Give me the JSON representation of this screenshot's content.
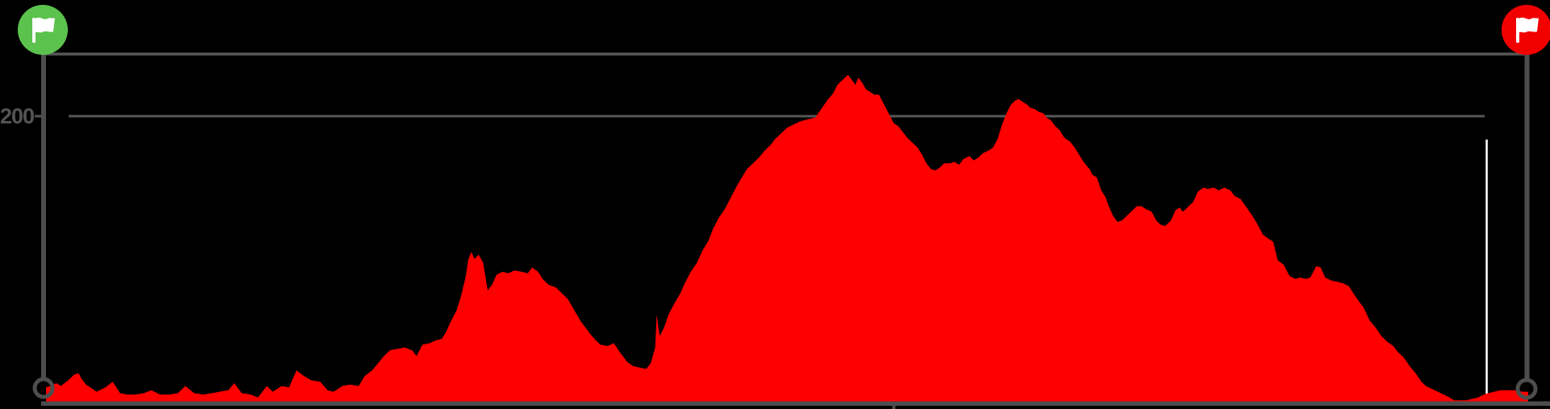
{
  "colors": {
    "background": "#000000",
    "area_fill": "#ff0000",
    "axis": "#4d4d4d",
    "gridline": "#565656",
    "tick_label_color": "#545454",
    "cursor_line": "#ffffff",
    "start_marker": "#5cc24e",
    "end_marker": "#f20000",
    "flag_glyph": "#ffffff"
  },
  "y_axis": {
    "tick_label": "200"
  },
  "markers": {
    "start": {
      "icon": "flag-icon",
      "shape": "circle",
      "color": "#5cc24e"
    },
    "end": {
      "icon": "flag-icon",
      "shape": "circle",
      "color": "#f20000"
    },
    "start_base_ring": {
      "shape": "ring",
      "color": "#4d4d4d"
    },
    "end_base_ring": {
      "shape": "ring",
      "color": "#4d4d4d"
    }
  },
  "chart_data": {
    "type": "area",
    "x_unit": "percent_of_route",
    "y_unit": "meters",
    "ylim": [
      0,
      244
    ],
    "grid": "single horizontal gridline at y=200",
    "legend": "none",
    "y_ticks": [
      {
        "value": 200,
        "label": "200"
      }
    ],
    "x_ticks": [
      {
        "position_pct": 57.2,
        "label": ""
      }
    ],
    "frame_top_elevation_m": 244,
    "cursor": {
      "position_pct": 97.2,
      "top_elevation_m": 183,
      "color": "#ffffff"
    },
    "max_elevation_m": 229,
    "series": [
      {
        "name": "elevation",
        "color": "#ff0000",
        "points_pct_m": [
          [
            0,
            10
          ],
          [
            0.3,
            11
          ],
          [
            0.7,
            13
          ],
          [
            1.0,
            11
          ],
          [
            1.5,
            15
          ],
          [
            1.9,
            19
          ],
          [
            2.2,
            20
          ],
          [
            2.4,
            16
          ],
          [
            2.7,
            12
          ],
          [
            3.0,
            10
          ],
          [
            3.4,
            7
          ],
          [
            4.0,
            10
          ],
          [
            4.5,
            14
          ],
          [
            5.0,
            6
          ],
          [
            5.5,
            5
          ],
          [
            6.0,
            5
          ],
          [
            6.6,
            6
          ],
          [
            7.1,
            8
          ],
          [
            7.7,
            5
          ],
          [
            8.3,
            5
          ],
          [
            8.9,
            6
          ],
          [
            9.4,
            11
          ],
          [
            10.0,
            6
          ],
          [
            10.6,
            5
          ],
          [
            11.2,
            6
          ],
          [
            11.7,
            7
          ],
          [
            12.3,
            8
          ],
          [
            12.7,
            13
          ],
          [
            13.2,
            6
          ],
          [
            13.8,
            5
          ],
          [
            14.3,
            3
          ],
          [
            14.9,
            11
          ],
          [
            15.3,
            7
          ],
          [
            15.9,
            11
          ],
          [
            16.4,
            10
          ],
          [
            16.9,
            22
          ],
          [
            17.4,
            18
          ],
          [
            17.9,
            15
          ],
          [
            18.5,
            14
          ],
          [
            19.0,
            8
          ],
          [
            19.4,
            7
          ],
          [
            20.0,
            11
          ],
          [
            20.5,
            12
          ],
          [
            21.1,
            11
          ],
          [
            21.5,
            18
          ],
          [
            22.0,
            22
          ],
          [
            22.4,
            27
          ],
          [
            22.8,
            32
          ],
          [
            23.2,
            36
          ],
          [
            23.7,
            37
          ],
          [
            24.2,
            38
          ],
          [
            24.7,
            36
          ],
          [
            25.0,
            32
          ],
          [
            25.4,
            40
          ],
          [
            25.9,
            41
          ],
          [
            26.3,
            43
          ],
          [
            26.7,
            44
          ],
          [
            27.0,
            49
          ],
          [
            27.3,
            56
          ],
          [
            27.7,
            64
          ],
          [
            28.0,
            74
          ],
          [
            28.3,
            87
          ],
          [
            28.5,
            100
          ],
          [
            28.7,
            105
          ],
          [
            28.9,
            100
          ],
          [
            29.2,
            103
          ],
          [
            29.5,
            97
          ],
          [
            29.8,
            78
          ],
          [
            30.1,
            82
          ],
          [
            30.4,
            89
          ],
          [
            30.8,
            91
          ],
          [
            31.2,
            90
          ],
          [
            31.6,
            92
          ],
          [
            32.1,
            91
          ],
          [
            32.5,
            90
          ],
          [
            32.8,
            94
          ],
          [
            33.2,
            91
          ],
          [
            33.5,
            86
          ],
          [
            33.9,
            82
          ],
          [
            34.4,
            80
          ],
          [
            34.8,
            76
          ],
          [
            35.2,
            72
          ],
          [
            35.7,
            63
          ],
          [
            36.1,
            56
          ],
          [
            36.6,
            49
          ],
          [
            37.0,
            44
          ],
          [
            37.4,
            40
          ],
          [
            37.9,
            39
          ],
          [
            38.3,
            41
          ],
          [
            38.7,
            35
          ],
          [
            39.2,
            28
          ],
          [
            39.6,
            25
          ],
          [
            40.0,
            24
          ],
          [
            40.5,
            23
          ],
          [
            40.8,
            27
          ],
          [
            41.1,
            38
          ],
          [
            41.2,
            61
          ],
          [
            41.4,
            46
          ],
          [
            41.7,
            52
          ],
          [
            42.0,
            61
          ],
          [
            42.4,
            69
          ],
          [
            42.8,
            76
          ],
          [
            43.1,
            83
          ],
          [
            43.5,
            91
          ],
          [
            43.9,
            97
          ],
          [
            44.3,
            106
          ],
          [
            44.7,
            113
          ],
          [
            45.0,
            121
          ],
          [
            45.4,
            129
          ],
          [
            45.8,
            135
          ],
          [
            46.2,
            143
          ],
          [
            46.6,
            151
          ],
          [
            47.0,
            158
          ],
          [
            47.3,
            163
          ],
          [
            47.7,
            167
          ],
          [
            48.1,
            171
          ],
          [
            48.5,
            176
          ],
          [
            48.9,
            180
          ],
          [
            49.2,
            184
          ],
          [
            49.6,
            188
          ],
          [
            50.0,
            192
          ],
          [
            50.4,
            194
          ],
          [
            50.8,
            196
          ],
          [
            51.1,
            197
          ],
          [
            51.5,
            198
          ],
          [
            51.9,
            199
          ],
          [
            52.3,
            205
          ],
          [
            52.7,
            211
          ],
          [
            53.1,
            216
          ],
          [
            53.4,
            222
          ],
          [
            53.8,
            226
          ],
          [
            54.1,
            229
          ],
          [
            54.4,
            225
          ],
          [
            54.6,
            222
          ],
          [
            54.8,
            227
          ],
          [
            55.1,
            223
          ],
          [
            55.3,
            219
          ],
          [
            55.6,
            217
          ],
          [
            55.9,
            215
          ],
          [
            56.2,
            215
          ],
          [
            56.4,
            211
          ],
          [
            56.7,
            205
          ],
          [
            57.0,
            199
          ],
          [
            57.2,
            195
          ],
          [
            57.5,
            193
          ],
          [
            57.8,
            189
          ],
          [
            58.1,
            185
          ],
          [
            58.4,
            182
          ],
          [
            58.8,
            178
          ],
          [
            59.1,
            173
          ],
          [
            59.4,
            167
          ],
          [
            59.7,
            163
          ],
          [
            60.0,
            162
          ],
          [
            60.3,
            164
          ],
          [
            60.6,
            167
          ],
          [
            61.0,
            167
          ],
          [
            61.3,
            168
          ],
          [
            61.6,
            166
          ],
          [
            61.9,
            170
          ],
          [
            62.3,
            172
          ],
          [
            62.6,
            169
          ],
          [
            62.9,
            171
          ],
          [
            63.2,
            174
          ],
          [
            63.6,
            176
          ],
          [
            63.9,
            178
          ],
          [
            64.2,
            184
          ],
          [
            64.5,
            194
          ],
          [
            64.8,
            202
          ],
          [
            65.1,
            208
          ],
          [
            65.4,
            211
          ],
          [
            65.6,
            212
          ],
          [
            65.9,
            210
          ],
          [
            66.2,
            208
          ],
          [
            66.4,
            206
          ],
          [
            66.7,
            205
          ],
          [
            67.0,
            203
          ],
          [
            67.3,
            202
          ],
          [
            67.5,
            199
          ],
          [
            67.8,
            197
          ],
          [
            68.1,
            193
          ],
          [
            68.4,
            190
          ],
          [
            68.7,
            185
          ],
          [
            69.1,
            182
          ],
          [
            69.4,
            178
          ],
          [
            69.7,
            173
          ],
          [
            70.0,
            168
          ],
          [
            70.4,
            163
          ],
          [
            70.6,
            159
          ],
          [
            70.9,
            157
          ],
          [
            71.2,
            148
          ],
          [
            71.5,
            143
          ],
          [
            71.7,
            137
          ],
          [
            72.0,
            130
          ],
          [
            72.3,
            126
          ],
          [
            72.6,
            127
          ],
          [
            72.9,
            130
          ],
          [
            73.3,
            134
          ],
          [
            73.6,
            137
          ],
          [
            73.9,
            137
          ],
          [
            74.2,
            135
          ],
          [
            74.6,
            133
          ],
          [
            74.9,
            127
          ],
          [
            75.2,
            124
          ],
          [
            75.5,
            123
          ],
          [
            75.9,
            127
          ],
          [
            76.2,
            134
          ],
          [
            76.5,
            136
          ],
          [
            76.7,
            133
          ],
          [
            77.1,
            137
          ],
          [
            77.4,
            140
          ],
          [
            77.7,
            147
          ],
          [
            78.1,
            150
          ],
          [
            78.4,
            149
          ],
          [
            78.8,
            150
          ],
          [
            79.1,
            148
          ],
          [
            79.5,
            150
          ],
          [
            79.9,
            148
          ],
          [
            80.2,
            144
          ],
          [
            80.6,
            142
          ],
          [
            81.0,
            136
          ],
          [
            81.4,
            130
          ],
          [
            81.7,
            125
          ],
          [
            82.1,
            117
          ],
          [
            82.5,
            114
          ],
          [
            82.8,
            112
          ],
          [
            83.1,
            99
          ],
          [
            83.5,
            96
          ],
          [
            83.9,
            88
          ],
          [
            84.3,
            86
          ],
          [
            84.6,
            87
          ],
          [
            85.0,
            86
          ],
          [
            85.3,
            87
          ],
          [
            85.7,
            95
          ],
          [
            86.0,
            94
          ],
          [
            86.3,
            87
          ],
          [
            86.7,
            85
          ],
          [
            87.1,
            84
          ],
          [
            87.5,
            83
          ],
          [
            87.9,
            81
          ],
          [
            88.2,
            76
          ],
          [
            88.6,
            70
          ],
          [
            88.9,
            66
          ],
          [
            89.3,
            57
          ],
          [
            89.7,
            52
          ],
          [
            90.1,
            46
          ],
          [
            90.5,
            42
          ],
          [
            90.9,
            39
          ],
          [
            91.2,
            35
          ],
          [
            91.6,
            31
          ],
          [
            92.0,
            25
          ],
          [
            92.4,
            20
          ],
          [
            92.8,
            14
          ],
          [
            93.1,
            11
          ],
          [
            93.5,
            9
          ],
          [
            93.9,
            7
          ],
          [
            94.3,
            5
          ],
          [
            94.7,
            3
          ],
          [
            95.0,
            1
          ],
          [
            95.4,
            1
          ],
          [
            95.8,
            1
          ],
          [
            96.2,
            2
          ],
          [
            96.6,
            3
          ],
          [
            97.0,
            5
          ],
          [
            97.3,
            6
          ],
          [
            97.7,
            7
          ],
          [
            98.1,
            8
          ],
          [
            98.5,
            8
          ],
          [
            98.9,
            8
          ],
          [
            99.2,
            8
          ],
          [
            99.6,
            7
          ],
          [
            100,
            7
          ]
        ]
      }
    ]
  }
}
